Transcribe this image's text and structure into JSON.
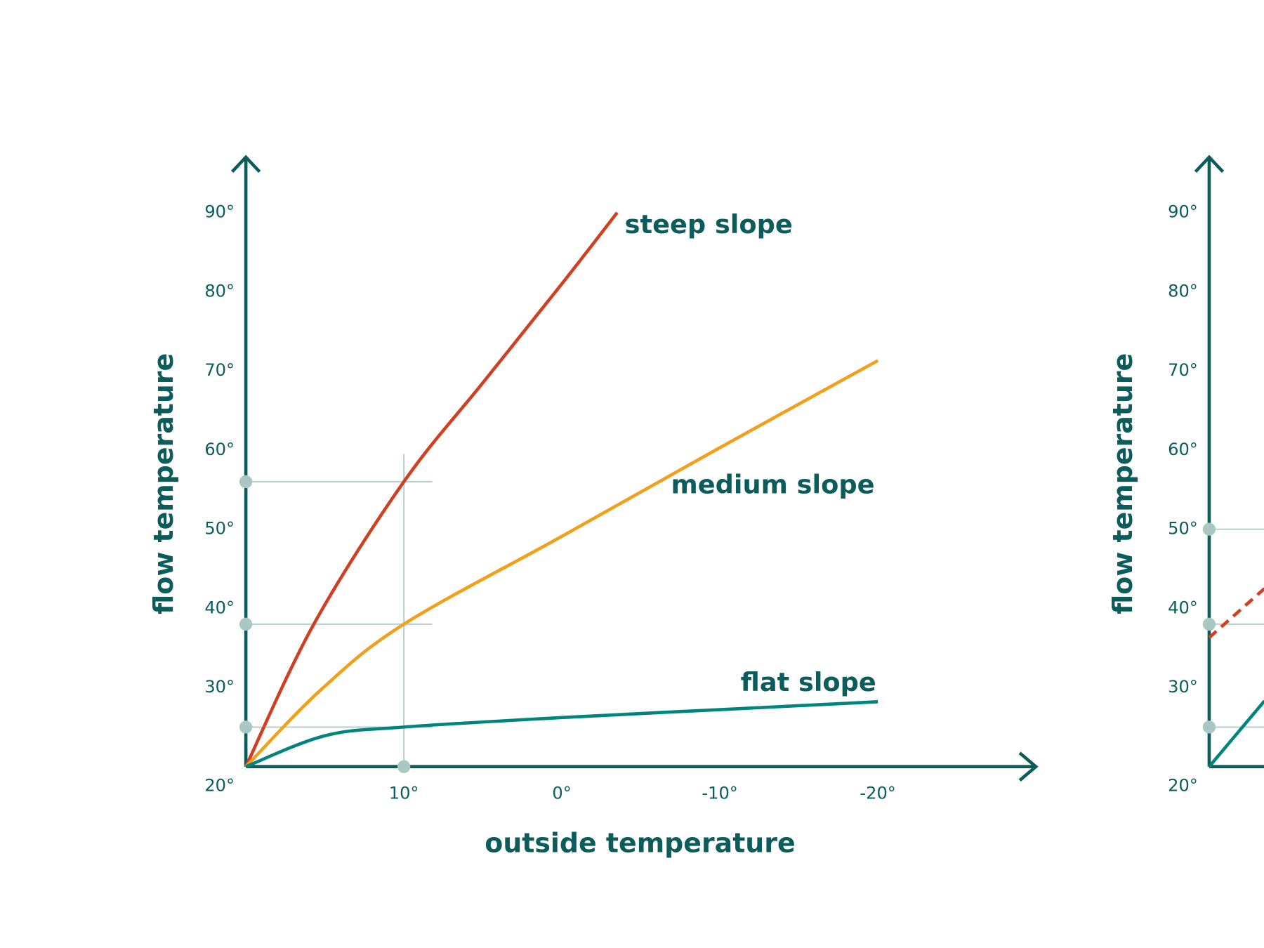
{
  "chart_data": [
    {
      "type": "line",
      "x_label": "outside temperature",
      "y_label": "flow temperature",
      "xlim": [
        20,
        -30
      ],
      "ylim": [
        20,
        97
      ],
      "xticks": [
        {
          "value": 10,
          "label": "10°"
        },
        {
          "value": 0,
          "label": "0°"
        },
        {
          "value": -10,
          "label": "-10°"
        },
        {
          "value": -20,
          "label": "-20°"
        }
      ],
      "yticks": [
        {
          "value": 20,
          "label": "20°"
        },
        {
          "value": 30,
          "label": "30°"
        },
        {
          "value": 40,
          "label": "40°"
        },
        {
          "value": 50,
          "label": "50°"
        },
        {
          "value": 60,
          "label": "60°"
        },
        {
          "value": 70,
          "label": "70°"
        },
        {
          "value": 80,
          "label": "80°"
        },
        {
          "value": 90,
          "label": "90°"
        }
      ],
      "axis_color": "#0d5c5c",
      "series": [
        {
          "name": "steep slope",
          "color": "#d13f22",
          "x": [
            20,
            15.7,
            10,
            5,
            0,
            -3.5
          ],
          "values": [
            20,
            38,
            56,
            68.5,
            81,
            90
          ]
        },
        {
          "name": "medium slope",
          "color": "#f2a01c",
          "x": [
            20,
            15.2,
            10,
            0,
            -10,
            -20
          ],
          "values": [
            20,
            29.8,
            38,
            49.1,
            60.3,
            71.3
          ]
        },
        {
          "name": "flat slope",
          "color": "#00857d",
          "x": [
            20,
            15,
            10,
            0,
            -10,
            -20
          ],
          "values": [
            20,
            23.9,
            25,
            26.2,
            27.2,
            28.2
          ]
        }
      ],
      "guides": {
        "color": "#a9c8c4",
        "y": [
          56,
          38,
          25
        ],
        "x": [
          10
        ]
      }
    },
    {
      "type": "line",
      "y_label": "flow temperature",
      "xlim": [
        20,
        -30
      ],
      "ylim": [
        20,
        97
      ],
      "yticks": [
        {
          "value": 20,
          "label": "20°"
        },
        {
          "value": 30,
          "label": "30°"
        },
        {
          "value": 40,
          "label": "40°"
        },
        {
          "value": 50,
          "label": "50°"
        },
        {
          "value": 60,
          "label": "60°"
        },
        {
          "value": 70,
          "label": "70°"
        },
        {
          "value": 80,
          "label": "80°"
        },
        {
          "value": 90,
          "label": "90°"
        }
      ],
      "axis_color": "#0d5c5c",
      "series": [
        {
          "color": "#d13f22",
          "dashed": true,
          "x": [
            20,
            16.5
          ],
          "values": [
            36.3,
            42.5
          ]
        },
        {
          "color": "#00857d",
          "x": [
            20,
            16.5
          ],
          "values": [
            20,
            28.3
          ]
        }
      ],
      "guides": {
        "color": "#a9c8c4",
        "y": [
          50,
          38,
          25
        ],
        "x": []
      }
    }
  ]
}
